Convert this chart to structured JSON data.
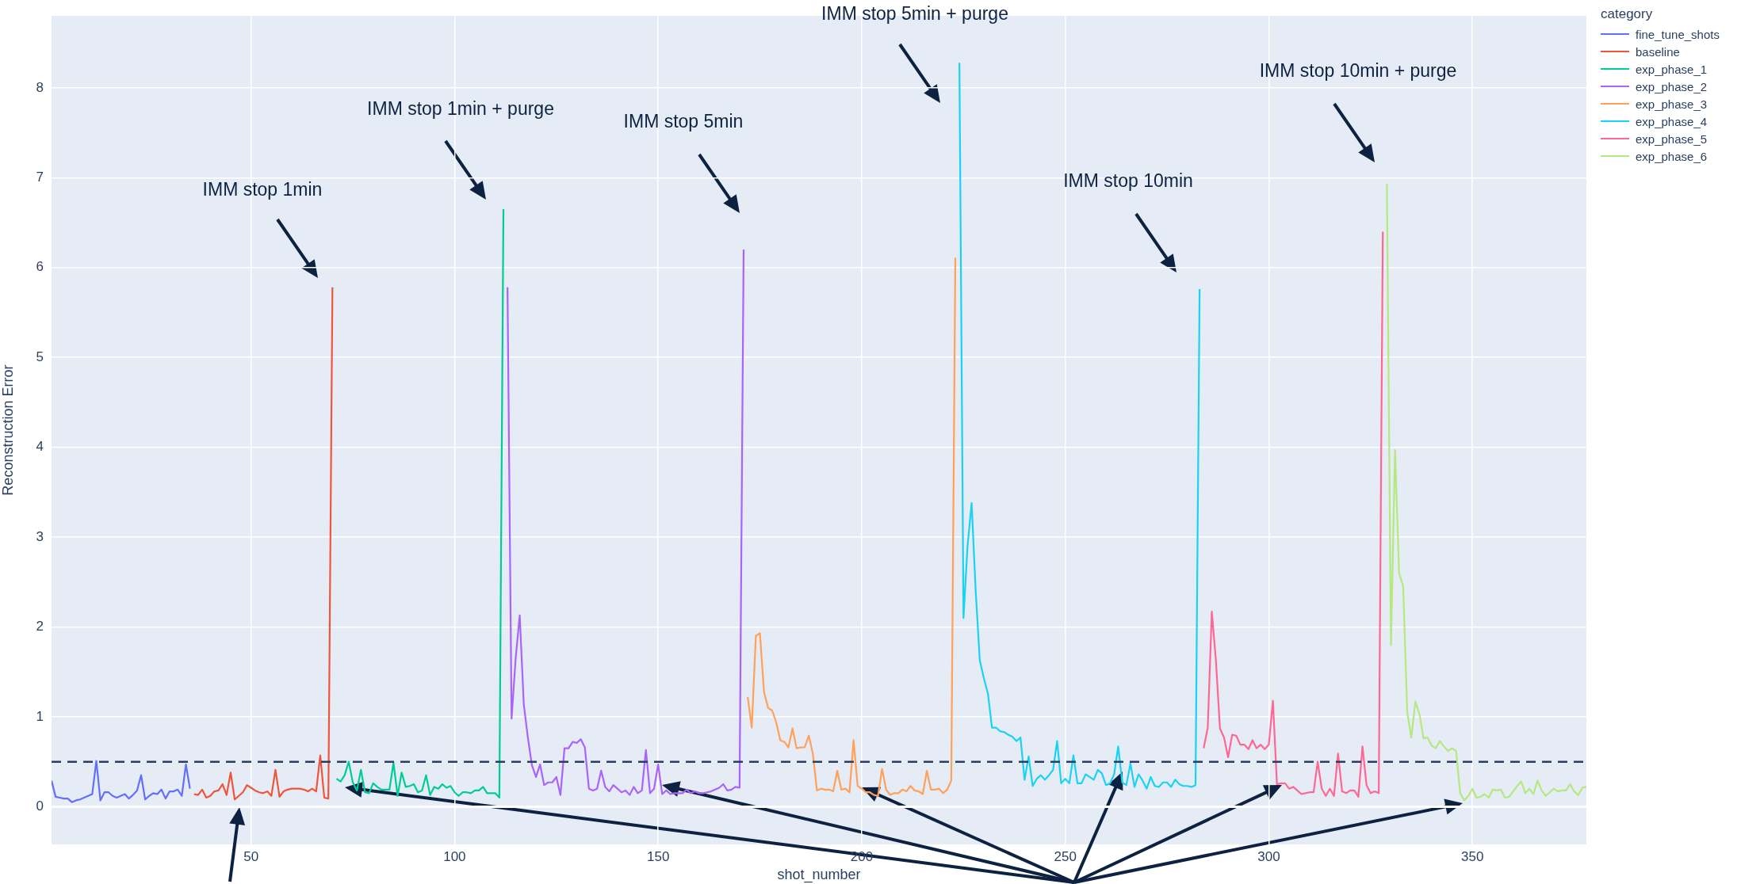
{
  "chart_data": {
    "type": "line",
    "xlabel": "shot_number",
    "ylabel": "Reconstruction Error",
    "legend_title": "category",
    "legend": "top right",
    "grid": true,
    "xlim": [
      1,
      378
    ],
    "xticks": [
      50,
      100,
      150,
      200,
      250,
      300,
      350
    ],
    "ylim": [
      -0.42,
      8.8
    ],
    "yticks": [
      0,
      1,
      2,
      3,
      4,
      5,
      6,
      7,
      8
    ],
    "ref_lines": [
      {
        "axis": "y",
        "value": 0.5,
        "color": "#2a3f5f",
        "line_style": "dashed"
      }
    ],
    "annotations": [
      "IMM stop 1min",
      "IMM stop 1min + purge",
      "IMM stop 5min",
      "IMM stop 5min + purge",
      "IMM stop 10min",
      "IMM stop 10min + purge"
    ],
    "series": [
      {
        "name": "fine_tune_shots",
        "color": "#636efa",
        "x": [
          1,
          2,
          3,
          4,
          5,
          6,
          7,
          8,
          9,
          10,
          11,
          12,
          13,
          14,
          15,
          16,
          17,
          18,
          19,
          20,
          21,
          22,
          23,
          24,
          25,
          26,
          27,
          28,
          29,
          30,
          31,
          32,
          33,
          34,
          35
        ],
        "values": [
          0.29,
          0.11,
          0.1,
          0.09,
          0.09,
          0.05,
          0.07,
          0.08,
          0.1,
          0.12,
          0.14,
          0.51,
          0.07,
          0.16,
          0.16,
          0.12,
          0.1,
          0.12,
          0.14,
          0.09,
          0.13,
          0.18,
          0.35,
          0.08,
          0.12,
          0.15,
          0.14,
          0.19,
          0.09,
          0.17,
          0.17,
          0.19,
          0.12,
          0.47,
          0.2
        ]
      },
      {
        "name": "baseline",
        "color": "#ef553b",
        "x": [
          36,
          37,
          38,
          39,
          40,
          41,
          42,
          43,
          44,
          45,
          46,
          47,
          48,
          49,
          50,
          51,
          52,
          53,
          54,
          55,
          56,
          57,
          58,
          59,
          60,
          61,
          62,
          63,
          64,
          65,
          66,
          67,
          68,
          69,
          70
        ],
        "values": [
          0.14,
          0.13,
          0.19,
          0.1,
          0.12,
          0.17,
          0.18,
          0.25,
          0.13,
          0.38,
          0.08,
          0.12,
          0.16,
          0.24,
          0.21,
          0.18,
          0.16,
          0.15,
          0.17,
          0.12,
          0.41,
          0.11,
          0.17,
          0.19,
          0.2,
          0.2,
          0.2,
          0.19,
          0.17,
          0.2,
          0.17,
          0.57,
          0.1,
          0.09,
          5.78
        ]
      },
      {
        "name": "exp_phase_1",
        "color": "#00cc96",
        "x": [
          71,
          72,
          73,
          74,
          75,
          76,
          77,
          78,
          79,
          80,
          81,
          82,
          83,
          84,
          85,
          86,
          87,
          88,
          89,
          90,
          91,
          92,
          93,
          94,
          95,
          96,
          97,
          98,
          99,
          100,
          101,
          102,
          103,
          104,
          105,
          106,
          107,
          108,
          109,
          110,
          111,
          112
        ],
        "values": [
          0.31,
          0.28,
          0.35,
          0.5,
          0.27,
          0.18,
          0.41,
          0.16,
          0.15,
          0.26,
          0.22,
          0.19,
          0.19,
          0.19,
          0.49,
          0.12,
          0.38,
          0.22,
          0.23,
          0.25,
          0.16,
          0.18,
          0.35,
          0.13,
          0.22,
          0.2,
          0.25,
          0.21,
          0.23,
          0.16,
          0.12,
          0.16,
          0.16,
          0.15,
          0.18,
          0.18,
          0.22,
          0.15,
          0.15,
          0.15,
          0.1,
          6.65
        ]
      },
      {
        "name": "exp_phase_2",
        "color": "#ab63fa",
        "x": [
          113,
          114,
          115,
          116,
          117,
          118,
          119,
          120,
          121,
          122,
          123,
          124,
          125,
          126,
          127,
          128,
          129,
          130,
          131,
          132,
          133,
          134,
          135,
          136,
          137,
          138,
          139,
          140,
          141,
          142,
          143,
          144,
          145,
          146,
          147,
          148,
          149,
          150,
          151,
          152,
          153,
          154,
          155,
          156,
          157,
          158,
          159,
          160,
          161,
          162,
          163,
          164,
          165,
          166,
          167,
          168,
          169,
          170,
          171
        ],
        "values": [
          5.78,
          0.98,
          1.65,
          2.13,
          1.14,
          0.77,
          0.46,
          0.33,
          0.47,
          0.24,
          0.27,
          0.27,
          0.33,
          0.13,
          0.65,
          0.65,
          0.72,
          0.71,
          0.75,
          0.66,
          0.2,
          0.18,
          0.2,
          0.4,
          0.22,
          0.17,
          0.24,
          0.2,
          0.16,
          0.18,
          0.13,
          0.22,
          0.15,
          0.18,
          0.63,
          0.15,
          0.2,
          0.47,
          0.14,
          0.18,
          0.14,
          0.15,
          0.15,
          0.15,
          0.19,
          0.15,
          0.17,
          0.15,
          0.15,
          0.16,
          0.17,
          0.19,
          0.21,
          0.25,
          0.18,
          0.19,
          0.22,
          0.21,
          6.2
        ]
      },
      {
        "name": "exp_phase_3",
        "color": "#ffa15a",
        "x": [
          172,
          173,
          174,
          175,
          176,
          177,
          178,
          179,
          180,
          181,
          182,
          183,
          184,
          185,
          186,
          187,
          188,
          189,
          190,
          191,
          192,
          193,
          194,
          195,
          196,
          197,
          198,
          199,
          200,
          201,
          202,
          203,
          204,
          205,
          206,
          207,
          208,
          209,
          210,
          211,
          212,
          213,
          214,
          215,
          216,
          217,
          218,
          219,
          220,
          221,
          222,
          223
        ],
        "values": [
          1.22,
          0.88,
          1.9,
          1.93,
          1.28,
          1.1,
          1.07,
          0.94,
          0.74,
          0.72,
          0.66,
          0.87,
          0.65,
          0.66,
          0.66,
          0.79,
          0.59,
          0.18,
          0.2,
          0.19,
          0.19,
          0.17,
          0.4,
          0.19,
          0.2,
          0.16,
          0.74,
          0.23,
          0.2,
          0.16,
          0.16,
          0.13,
          0.12,
          0.42,
          0.19,
          0.13,
          0.15,
          0.15,
          0.19,
          0.17,
          0.23,
          0.18,
          0.17,
          0.14,
          0.4,
          0.19,
          0.19,
          0.2,
          0.15,
          0.19,
          0.29,
          6.11
        ]
      },
      {
        "name": "exp_phase_4",
        "color": "#19d3f3",
        "x": [
          224,
          225,
          226,
          227,
          228,
          229,
          230,
          231,
          232,
          233,
          234,
          235,
          236,
          237,
          238,
          239,
          240,
          241,
          242,
          243,
          244,
          245,
          246,
          247,
          248,
          249,
          250,
          251,
          252,
          253,
          254,
          255,
          256,
          257,
          258,
          259,
          260,
          261,
          262,
          263,
          264,
          265,
          266,
          267,
          268,
          269,
          270,
          271,
          272,
          273,
          274,
          275,
          276,
          277,
          278,
          279,
          280,
          281,
          282,
          283
        ],
        "values": [
          8.28,
          2.1,
          2.9,
          3.38,
          2.4,
          1.63,
          1.43,
          1.26,
          0.88,
          0.88,
          0.84,
          0.83,
          0.8,
          0.78,
          0.73,
          0.77,
          0.3,
          0.56,
          0.23,
          0.31,
          0.35,
          0.3,
          0.35,
          0.41,
          0.73,
          0.26,
          0.31,
          0.26,
          0.57,
          0.26,
          0.26,
          0.36,
          0.33,
          0.3,
          0.41,
          0.37,
          0.24,
          0.26,
          0.36,
          0.67,
          0.27,
          0.24,
          0.48,
          0.22,
          0.36,
          0.29,
          0.2,
          0.33,
          0.23,
          0.22,
          0.27,
          0.27,
          0.22,
          0.3,
          0.25,
          0.23,
          0.23,
          0.22,
          0.24,
          5.76
        ]
      },
      {
        "name": "exp_phase_5",
        "color": "#ff6692",
        "x": [
          284,
          285,
          286,
          287,
          288,
          289,
          290,
          291,
          292,
          293,
          294,
          295,
          296,
          297,
          298,
          299,
          300,
          301,
          302,
          303,
          304,
          305,
          306,
          307,
          308,
          309,
          310,
          311,
          312,
          313,
          314,
          315,
          316,
          317,
          318,
          319,
          320,
          321,
          322,
          323,
          324,
          325,
          326,
          327,
          328
        ],
        "values": [
          0.65,
          0.88,
          2.17,
          1.63,
          0.87,
          0.77,
          0.55,
          0.8,
          0.79,
          0.69,
          0.69,
          0.64,
          0.74,
          0.65,
          0.69,
          0.64,
          0.69,
          1.18,
          0.25,
          0.26,
          0.26,
          0.2,
          0.22,
          0.18,
          0.14,
          0.15,
          0.16,
          0.16,
          0.5,
          0.2,
          0.12,
          0.2,
          0.12,
          0.59,
          0.17,
          0.15,
          0.18,
          0.18,
          0.11,
          0.67,
          0.24,
          0.15,
          0.17,
          0.15,
          6.4
        ]
      },
      {
        "name": "exp_phase_6",
        "color": "#b6e880",
        "x": [
          329,
          330,
          331,
          332,
          333,
          334,
          335,
          336,
          337,
          338,
          339,
          340,
          341,
          342,
          343,
          344,
          345,
          346,
          347,
          348,
          349,
          350,
          351,
          352,
          353,
          354,
          355,
          356,
          357,
          358,
          359,
          360,
          361,
          362,
          363,
          364,
          365,
          366,
          367,
          368,
          369,
          370,
          371,
          372,
          373,
          374,
          375,
          376,
          377,
          378
        ],
        "values": [
          6.93,
          1.8,
          3.97,
          2.6,
          2.45,
          1.05,
          0.77,
          1.17,
          1.03,
          0.76,
          0.77,
          0.68,
          0.65,
          0.73,
          0.67,
          0.62,
          0.65,
          0.62,
          0.15,
          0.07,
          0.12,
          0.2,
          0.1,
          0.11,
          0.14,
          0.1,
          0.19,
          0.18,
          0.19,
          0.1,
          0.11,
          0.17,
          0.23,
          0.28,
          0.15,
          0.2,
          0.14,
          0.29,
          0.18,
          0.12,
          0.16,
          0.2,
          0.17,
          0.18,
          0.18,
          0.25,
          0.17,
          0.13,
          0.21,
          0.22
        ]
      }
    ]
  }
}
